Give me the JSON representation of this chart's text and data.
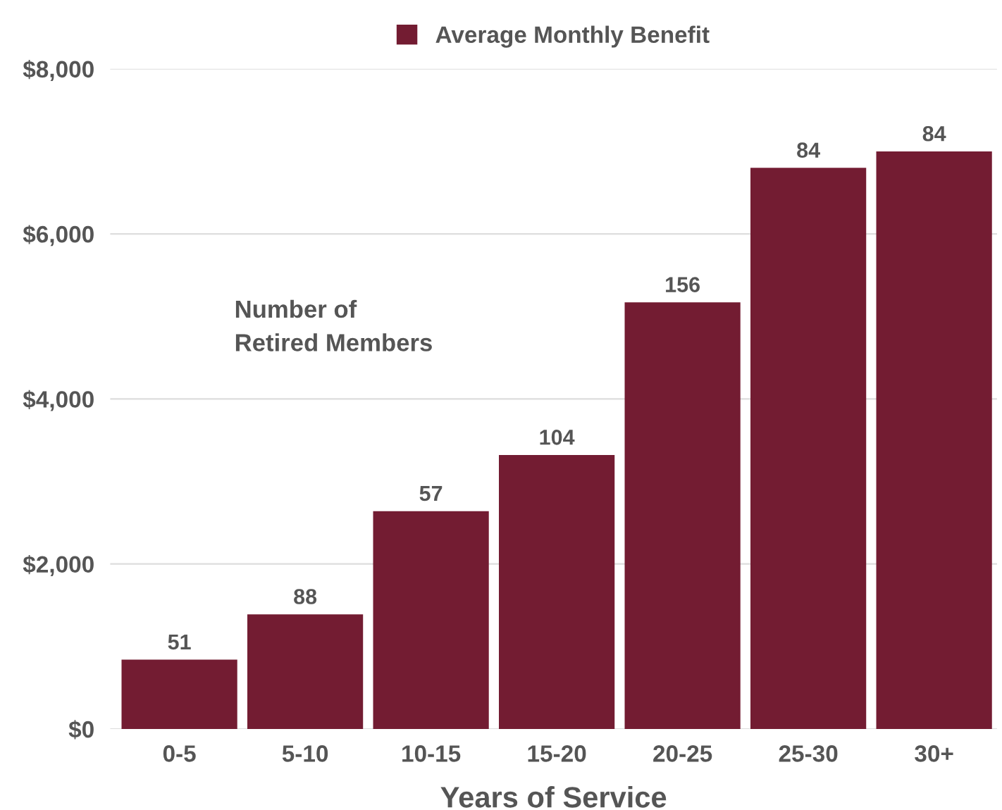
{
  "chart_data": {
    "type": "bar",
    "xlabel": "Years of Service",
    "categories": [
      "0-5",
      "5-10",
      "10-15",
      "15-20",
      "20-25",
      "25-30",
      "30+"
    ],
    "series": [
      {
        "name": "Average Monthly Benefit",
        "color": "#731c32",
        "values": [
          840,
          1390,
          2640,
          3320,
          5170,
          6800,
          7000
        ]
      }
    ],
    "value_labels": [
      "51",
      "88",
      "57",
      "104",
      "156",
      "84",
      "84"
    ],
    "annotations": [
      "Number of\nRetired Members"
    ],
    "ylim": [
      0,
      8000
    ],
    "yticks": [
      {
        "value": 0,
        "label": "$0"
      },
      {
        "value": 2000,
        "label": "$2,000"
      },
      {
        "value": 4000,
        "label": "$4,000"
      },
      {
        "value": 6000,
        "label": "$6,000"
      },
      {
        "value": 8000,
        "label": "$8,000"
      }
    ],
    "grid": "y",
    "legend": "top"
  }
}
